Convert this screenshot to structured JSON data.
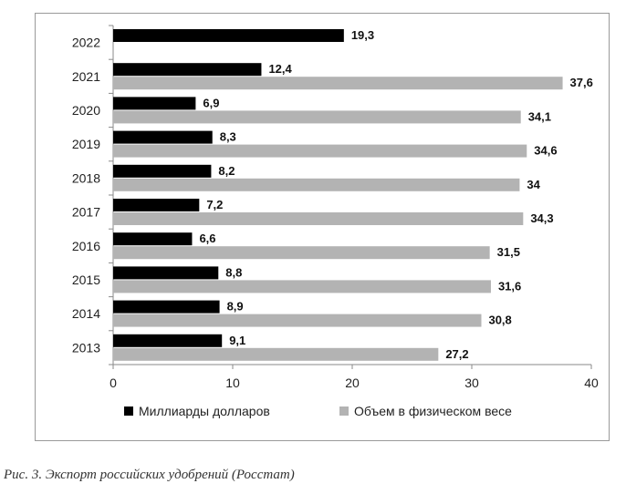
{
  "chart_data": {
    "type": "bar",
    "orientation": "horizontal",
    "categories": [
      "2022",
      "2021",
      "2020",
      "2019",
      "2018",
      "2017",
      "2016",
      "2015",
      "2014",
      "2013"
    ],
    "series": [
      {
        "name": "Миллиарды долларов",
        "color": "#000000",
        "values": [
          19.3,
          12.4,
          6.9,
          8.3,
          8.2,
          7.2,
          6.6,
          8.8,
          8.9,
          9.1
        ],
        "labels": [
          "19,3",
          "12,4",
          "6,9",
          "8,3",
          "8,2",
          "7,2",
          "6,6",
          "8,8",
          "8,9",
          "9,1"
        ]
      },
      {
        "name": "Объем в физическом весе",
        "color": "#b3b3b3",
        "values": [
          null,
          37.6,
          34.1,
          34.6,
          34,
          34.3,
          31.5,
          31.6,
          30.8,
          27.2
        ],
        "labels": [
          "",
          "37,6",
          "34,1",
          "34,6",
          "34",
          "34,3",
          "31,5",
          "31,6",
          "30,8",
          "27,2"
        ]
      }
    ],
    "x_ticks": [
      "0",
      "10",
      "20",
      "30",
      "40"
    ],
    "xlim": [
      0,
      40
    ],
    "grid": false,
    "legend": "bottom"
  },
  "caption": "Рис. 3. Экспорт российских удобрений (Росстат)",
  "caption_second_line": ""
}
